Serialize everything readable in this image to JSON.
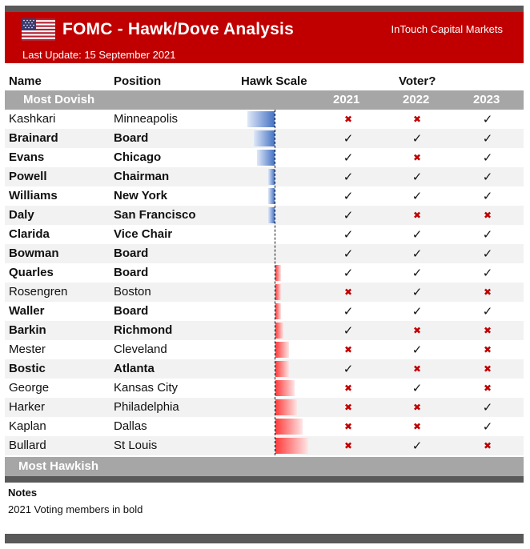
{
  "header": {
    "title": "FOMC - Hawk/Dove Analysis",
    "company": "InTouch Capital Markets",
    "last_update": "Last Update: 15 September 2021"
  },
  "columns": {
    "name": "Name",
    "position": "Position",
    "hawk_scale": "Hawk Scale",
    "voter": "Voter?",
    "years": [
      "2021",
      "2022",
      "2023"
    ]
  },
  "section_labels": {
    "top": "Most Dovish",
    "bottom": "Most Hawkish"
  },
  "notes": {
    "title": "Notes",
    "text": "2021 Voting members in bold"
  },
  "colors": {
    "header": "#c00000",
    "dove_bar": "#4472c4",
    "hawk_bar": "#ff3b3b",
    "no_vote": "#c00000",
    "grey_band": "#a6a6a6"
  },
  "icons": {
    "yes": "check-icon",
    "no": "cross-icon"
  },
  "chart_data": {
    "type": "bar",
    "title": "FOMC - Hawk/Dove Analysis",
    "xlabel": "Hawk Scale",
    "ylabel": "",
    "grid": false,
    "note": "negative = dovish (blue, left of axis), positive = hawkish (red, right of axis)",
    "xlim": [
      -5,
      5
    ],
    "rows": [
      {
        "name": "Kashkari",
        "position": "Minneapolis",
        "bold": false,
        "score": -4.0,
        "votes": [
          "no",
          "no",
          "yes"
        ]
      },
      {
        "name": "Brainard",
        "position": "Board",
        "bold": true,
        "score": -3.1,
        "votes": [
          "yes",
          "yes",
          "yes"
        ]
      },
      {
        "name": "Evans",
        "position": "Chicago",
        "bold": true,
        "score": -2.6,
        "votes": [
          "yes",
          "no",
          "yes"
        ]
      },
      {
        "name": "Powell",
        "position": "Chairman",
        "bold": true,
        "score": -1.0,
        "votes": [
          "yes",
          "yes",
          "yes"
        ]
      },
      {
        "name": "Williams",
        "position": "New York",
        "bold": true,
        "score": -1.0,
        "votes": [
          "yes",
          "yes",
          "yes"
        ]
      },
      {
        "name": "Daly",
        "position": "San Francisco",
        "bold": true,
        "score": -1.0,
        "votes": [
          "yes",
          "no",
          "no"
        ]
      },
      {
        "name": "Clarida",
        "position": "Vice Chair",
        "bold": true,
        "score": 0.0,
        "votes": [
          "yes",
          "yes",
          "yes"
        ]
      },
      {
        "name": "Bowman",
        "position": "Board",
        "bold": true,
        "score": 0.0,
        "votes": [
          "yes",
          "yes",
          "yes"
        ]
      },
      {
        "name": "Quarles",
        "position": "Board",
        "bold": true,
        "score": 0.8,
        "votes": [
          "yes",
          "yes",
          "yes"
        ]
      },
      {
        "name": "Rosengren",
        "position": "Boston",
        "bold": false,
        "score": 0.8,
        "votes": [
          "no",
          "yes",
          "no"
        ]
      },
      {
        "name": "Waller",
        "position": "Board",
        "bold": true,
        "score": 0.8,
        "votes": [
          "yes",
          "yes",
          "yes"
        ]
      },
      {
        "name": "Barkin",
        "position": "Richmond",
        "bold": true,
        "score": 1.2,
        "votes": [
          "yes",
          "no",
          "no"
        ]
      },
      {
        "name": "Mester",
        "position": "Cleveland",
        "bold": false,
        "score": 2.0,
        "votes": [
          "no",
          "yes",
          "no"
        ]
      },
      {
        "name": "Bostic",
        "position": "Atlanta",
        "bold": true,
        "score": 2.0,
        "votes": [
          "yes",
          "no",
          "no"
        ]
      },
      {
        "name": "George",
        "position": "Kansas City",
        "bold": false,
        "score": 2.8,
        "votes": [
          "no",
          "yes",
          "no"
        ]
      },
      {
        "name": "Harker",
        "position": "Philadelphia",
        "bold": false,
        "score": 3.2,
        "votes": [
          "no",
          "no",
          "yes"
        ]
      },
      {
        "name": "Kaplan",
        "position": "Dallas",
        "bold": false,
        "score": 4.0,
        "votes": [
          "no",
          "no",
          "yes"
        ]
      },
      {
        "name": "Bullard",
        "position": "St Louis",
        "bold": false,
        "score": 4.8,
        "votes": [
          "no",
          "yes",
          "no"
        ]
      }
    ]
  }
}
